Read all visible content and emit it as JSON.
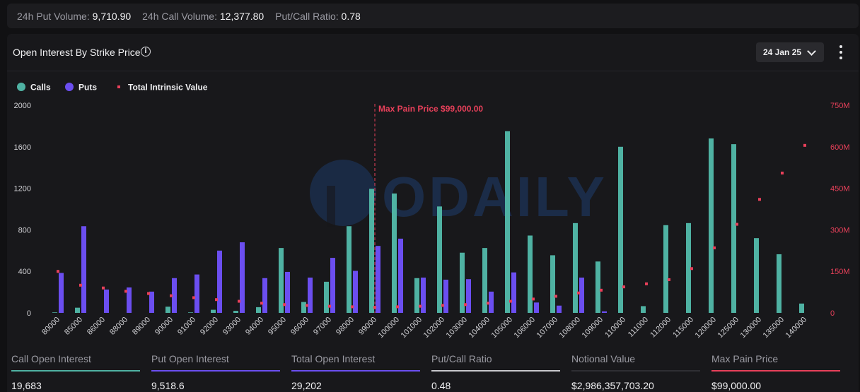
{
  "topbar": {
    "put_volume_label": "24h Put Volume:",
    "put_volume_value": "9,710.90",
    "call_volume_label": "24h Call Volume:",
    "call_volume_value": "12,377.80",
    "ratio_label": "Put/Call Ratio:",
    "ratio_value": "0.78"
  },
  "panel": {
    "title": "Open Interest By Strike Price",
    "info_icon": "info-icon",
    "date": "24 Jan 25",
    "more_icon": "more-vertical-icon"
  },
  "watermark": "ODAILY",
  "chart_data": {
    "type": "bar",
    "categories": [
      "80000",
      "85000",
      "86000",
      "88000",
      "89000",
      "90000",
      "91000",
      "92000",
      "93000",
      "94000",
      "95000",
      "96000",
      "97000",
      "98000",
      "99000",
      "100000",
      "101000",
      "102000",
      "103000",
      "104000",
      "105000",
      "106000",
      "107000",
      "108000",
      "109000",
      "110000",
      "111000",
      "112000",
      "115000",
      "120000",
      "125000",
      "130000",
      "135000",
      "140000"
    ],
    "series": [
      {
        "name": "Calls",
        "color": "#4fb2a3",
        "values": [
          5,
          50,
          0,
          0,
          0,
          60,
          5,
          30,
          20,
          55,
          625,
          105,
          300,
          835,
          1195,
          1150,
          335,
          1025,
          580,
          625,
          1750,
          745,
          555,
          865,
          495,
          1600,
          65,
          845,
          865,
          1680,
          1625,
          720,
          565,
          90
        ]
      },
      {
        "name": "Puts",
        "color": "#6b4ef0",
        "values": [
          385,
          835,
          225,
          245,
          205,
          335,
          370,
          600,
          680,
          335,
          395,
          340,
          530,
          405,
          645,
          715,
          340,
          320,
          325,
          205,
          390,
          100,
          70,
          340,
          15,
          0,
          0,
          0,
          0,
          0,
          0,
          0,
          0,
          0
        ]
      },
      {
        "name": "Total Intrinsic Value",
        "color": "#e8405a",
        "axis": "right",
        "values": [
          150,
          100,
          90,
          78,
          70,
          62,
          55,
          48,
          42,
          35,
          30,
          27,
          24,
          22,
          20,
          22,
          24,
          27,
          30,
          35,
          42,
          50,
          60,
          72,
          82,
          94,
          105,
          120,
          160,
          235,
          320,
          410,
          505,
          605
        ]
      }
    ],
    "ylim": [
      0,
      2000
    ],
    "yticks": [
      "0",
      "400",
      "800",
      "1200",
      "1600",
      "2000"
    ],
    "y2lim": [
      0,
      750
    ],
    "y2ticks": [
      "0",
      "150M",
      "300M",
      "450M",
      "600M",
      "750M"
    ],
    "annotation": {
      "label": "Max Pain Price $99,000.00",
      "at": "99000"
    },
    "legend_placement": "top-left",
    "grid": false
  },
  "stats": [
    {
      "label": "Call Open Interest",
      "value": "19,683",
      "color": "#4fb2a3"
    },
    {
      "label": "Put Open Interest",
      "value": "9,518.6",
      "color": "#6b4ef0"
    },
    {
      "label": "Total Open Interest",
      "value": "29,202",
      "color": "#6b4ef0"
    },
    {
      "label": "Put/Call Ratio",
      "value": "0.48",
      "color": "#c8c8cc"
    },
    {
      "label": "Notional Value",
      "value": "$2,986,357,703.20",
      "color": "#2e2e33"
    },
    {
      "label": "Max Pain Price",
      "value": "$99,000.00",
      "color": "#e8405a"
    }
  ]
}
